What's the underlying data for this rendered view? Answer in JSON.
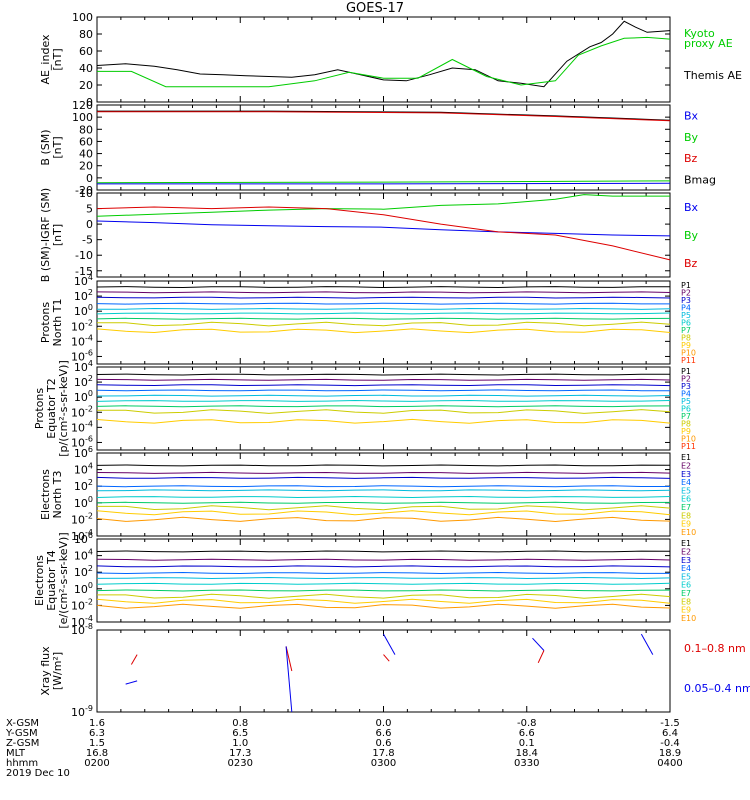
{
  "title": "GOES-17",
  "colors": {
    "bx": "#0000ee",
    "by": "#00cc00",
    "bz": "#dd0000",
    "bmag": "#000000",
    "p": [
      "#000000",
      "#660066",
      "#0000cc",
      "#0066ff",
      "#00bbdd",
      "#00cccc",
      "#00cc66",
      "#cccc00",
      "#ffcc00",
      "#ff9900",
      "#ff3300",
      "#dd0000"
    ]
  },
  "chart_data": [
    {
      "type": "line",
      "name": "ae",
      "ylabel": [
        "AE_index",
        "[nT]"
      ],
      "ylim": [
        0,
        100
      ],
      "yticks": [
        "100",
        "80",
        "60",
        "40",
        "20",
        "0"
      ],
      "yticks_v": [
        100,
        80,
        60,
        40,
        20,
        0
      ],
      "legend": [
        {
          "label": "Kyoto",
          "color": "#00cc00"
        },
        {
          "label": "proxy AE",
          "color": "#00cc00"
        },
        {
          "label": "Themis AE",
          "color": "#000000"
        }
      ],
      "series": [
        {
          "name": "Themis AE",
          "color": "#000000",
          "x": [
            0,
            0.05,
            0.1,
            0.14,
            0.18,
            0.22,
            0.26,
            0.3,
            0.34,
            0.38,
            0.42,
            0.46,
            0.5,
            0.54,
            0.58,
            0.62,
            0.66,
            0.7,
            0.74,
            0.78,
            0.82,
            0.86,
            0.88,
            0.9,
            0.92,
            0.94,
            0.96,
            1.0
          ],
          "y": [
            43,
            45,
            42,
            38,
            33,
            32,
            31,
            30,
            29,
            32,
            38,
            32,
            26,
            25,
            32,
            40,
            38,
            25,
            22,
            18,
            48,
            65,
            70,
            80,
            95,
            88,
            82,
            84
          ]
        },
        {
          "name": "Kyoto",
          "color": "#00cc00",
          "x": [
            0,
            0.06,
            0.12,
            0.2,
            0.3,
            0.38,
            0.44,
            0.5,
            0.56,
            0.62,
            0.68,
            0.74,
            0.8,
            0.84,
            0.88,
            0.92,
            0.96,
            1.0
          ],
          "y": [
            36,
            36,
            18,
            18,
            18,
            25,
            35,
            28,
            28,
            50,
            30,
            20,
            25,
            55,
            66,
            75,
            76,
            74
          ]
        }
      ]
    },
    {
      "type": "line",
      "name": "bsm",
      "ylabel": [
        "B (SM)",
        "[nT]"
      ],
      "ylim": [
        -20,
        120
      ],
      "yticks": [
        "120",
        "100",
        "80",
        "60",
        "40",
        "20",
        "0",
        "-20"
      ],
      "yticks_v": [
        120,
        100,
        80,
        60,
        40,
        20,
        0,
        -20
      ],
      "legend": [
        {
          "label": "Bx",
          "color": "#0000ee"
        },
        {
          "label": "By",
          "color": "#00cc00"
        },
        {
          "label": "Bz",
          "color": "#dd0000"
        },
        {
          "label": "Bmag",
          "color": "#000000"
        }
      ],
      "series": [
        {
          "name": "Bmag",
          "color": "#000000",
          "x": [
            0,
            0.3,
            0.6,
            0.8,
            1.0
          ],
          "y": [
            110,
            110,
            108,
            102,
            95
          ]
        },
        {
          "name": "Bz",
          "color": "#dd0000",
          "x": [
            0,
            0.3,
            0.6,
            0.8,
            1.0
          ],
          "y": [
            109,
            109,
            107,
            101,
            94
          ]
        },
        {
          "name": "By",
          "color": "#00cc00",
          "x": [
            0,
            0.5,
            1.0
          ],
          "y": [
            -8,
            -7,
            -5
          ]
        },
        {
          "name": "Bx",
          "color": "#0000ee",
          "x": [
            0,
            0.5,
            1.0
          ],
          "y": [
            -10,
            -10,
            -9
          ]
        }
      ]
    },
    {
      "type": "line",
      "name": "bdiff",
      "ylabel": [
        "B (SM)-IGRF (SM)",
        "[nT]"
      ],
      "ylim": [
        -17,
        10
      ],
      "yticks": [
        "10",
        "5",
        "0",
        "-5",
        "-10",
        "-15"
      ],
      "yticks_v": [
        10,
        5,
        0,
        -5,
        -10,
        -15
      ],
      "legend": [
        {
          "label": "Bx",
          "color": "#0000ee"
        },
        {
          "label": "By",
          "color": "#00cc00"
        },
        {
          "label": "Bz",
          "color": "#dd0000"
        }
      ],
      "series": [
        {
          "name": "Bx",
          "color": "#0000ee",
          "x": [
            0,
            0.1,
            0.2,
            0.3,
            0.4,
            0.5,
            0.6,
            0.7,
            0.8,
            0.9,
            1.0
          ],
          "y": [
            1,
            0.5,
            -0.2,
            -0.5,
            -0.8,
            -1,
            -1.8,
            -2.5,
            -3,
            -3.5,
            -3.8
          ]
        },
        {
          "name": "By",
          "color": "#00cc00",
          "x": [
            0,
            0.1,
            0.2,
            0.3,
            0.4,
            0.5,
            0.6,
            0.7,
            0.8,
            0.85,
            0.9,
            1.0
          ],
          "y": [
            2.5,
            3.2,
            3.8,
            4.5,
            5,
            4.8,
            6,
            6.5,
            8,
            9.5,
            9,
            9
          ]
        },
        {
          "name": "Bz",
          "color": "#dd0000",
          "x": [
            0,
            0.1,
            0.2,
            0.3,
            0.4,
            0.5,
            0.6,
            0.7,
            0.8,
            0.9,
            1.0
          ],
          "y": [
            5,
            5.5,
            5,
            5.5,
            5,
            3,
            0,
            -2.5,
            -3.5,
            -7,
            -11.5
          ]
        }
      ]
    },
    {
      "type": "line",
      "name": "pt1",
      "log": true,
      "ylabel": [
        "Protons",
        "North T1"
      ],
      "ylim": [
        -7,
        4
      ],
      "yticks": [
        "10^4",
        "10^2",
        "10^0",
        "10^-2",
        "10^-4",
        "10^-6"
      ],
      "yticks_v": [
        4,
        2,
        0,
        -2,
        -4,
        -6
      ],
      "legend_labels": [
        "P1",
        "P2",
        "P3",
        "P4",
        "P5",
        "P6",
        "P7",
        "P8",
        "P9",
        "P10",
        "P11"
      ],
      "levels": [
        3.2,
        2.5,
        1.8,
        1.0,
        0.3,
        -0.3,
        -1.0,
        -1.7,
        -2.6,
        null,
        null
      ]
    },
    {
      "type": "line",
      "name": "pt2",
      "log": true,
      "ylabel": [
        "Protons",
        "Equator T2",
        "[p/(cm²-s-sr-keV)]"
      ],
      "ylim": [
        -7,
        4
      ],
      "yticks": [
        "10^4",
        "10^2",
        "10^0",
        "10^-2",
        "10^-4",
        "10^-6"
      ],
      "yticks_v": [
        4,
        2,
        0,
        -2,
        -4,
        -6
      ],
      "legend_labels": [
        "P1",
        "P2",
        "P3",
        "P4",
        "P5",
        "P6",
        "P7",
        "P8",
        "P9",
        "P10",
        "P11"
      ],
      "levels": [
        3.0,
        2.3,
        1.6,
        0.9,
        0.2,
        -0.5,
        -1.2,
        -1.9,
        -3.2,
        null,
        null
      ]
    },
    {
      "type": "line",
      "name": "et3",
      "log": true,
      "ylabel": [
        "Electrons",
        "North T3"
      ],
      "ylim": [
        -4,
        6
      ],
      "yticks": [
        "10^6",
        "10^4",
        "10^2",
        "10^0",
        "10^-2",
        "10^-4"
      ],
      "yticks_v": [
        6,
        4,
        2,
        0,
        -2,
        -4
      ],
      "legend_labels": [
        "E1",
        "E2",
        "E3",
        "E4",
        "E5",
        "E6",
        "E7",
        "E8",
        "E9",
        "E10"
      ],
      "levels": [
        4.5,
        3.6,
        3.0,
        2.0,
        1.5,
        0.7,
        0.0,
        -0.6,
        -1.2,
        -2.0
      ]
    },
    {
      "type": "line",
      "name": "et4",
      "log": true,
      "ylabel": [
        "Electrons",
        "Equator T4",
        "[e/(cm²-s-sr-keV)]"
      ],
      "ylim": [
        -4,
        6
      ],
      "yticks": [
        "10^6",
        "10^4",
        "10^2",
        "10^0",
        "10^-2",
        "10^-4"
      ],
      "yticks_v": [
        6,
        4,
        2,
        0,
        -2,
        -4
      ],
      "legend_labels": [
        "E1",
        "E2",
        "E3",
        "E4",
        "E5",
        "E6",
        "E7",
        "E8",
        "E9",
        "E10"
      ],
      "levels": [
        4.5,
        3.5,
        2.7,
        1.9,
        1.3,
        0.6,
        -0.2,
        -0.9,
        -1.5,
        -2.1
      ]
    },
    {
      "type": "line",
      "name": "xray",
      "log": true,
      "ylabel": [
        "Xray flux",
        "[W/m²]"
      ],
      "ylim": [
        -9,
        -8
      ],
      "yticks": [
        "10^-8",
        "10^-9"
      ],
      "yticks_v": [
        -8,
        -9
      ],
      "legend": [
        {
          "label": "0.1–0.8 nm",
          "color": "#dd0000"
        },
        {
          "label": "0.05–0.4 nm",
          "color": "#0000ee"
        }
      ]
    }
  ],
  "xaxis": {
    "rows": [
      {
        "label": "X-GSM",
        "values": [
          "1.6",
          "0.8",
          "0.0",
          "-0.8",
          "-1.5"
        ]
      },
      {
        "label": "Y-GSM",
        "values": [
          "6.3",
          "6.5",
          "6.6",
          "6.6",
          "6.4"
        ]
      },
      {
        "label": "Z-GSM",
        "values": [
          "1.5",
          "1.0",
          "0.6",
          "0.1",
          "-0.4"
        ]
      },
      {
        "label": "MLT",
        "values": [
          "16.8",
          "17.3",
          "17.8",
          "18.4",
          "18.9"
        ]
      },
      {
        "label": "hhmm",
        "values": [
          "0200",
          "0230",
          "0300",
          "0330",
          "0400"
        ]
      }
    ],
    "date": "2019 Dec 10"
  }
}
